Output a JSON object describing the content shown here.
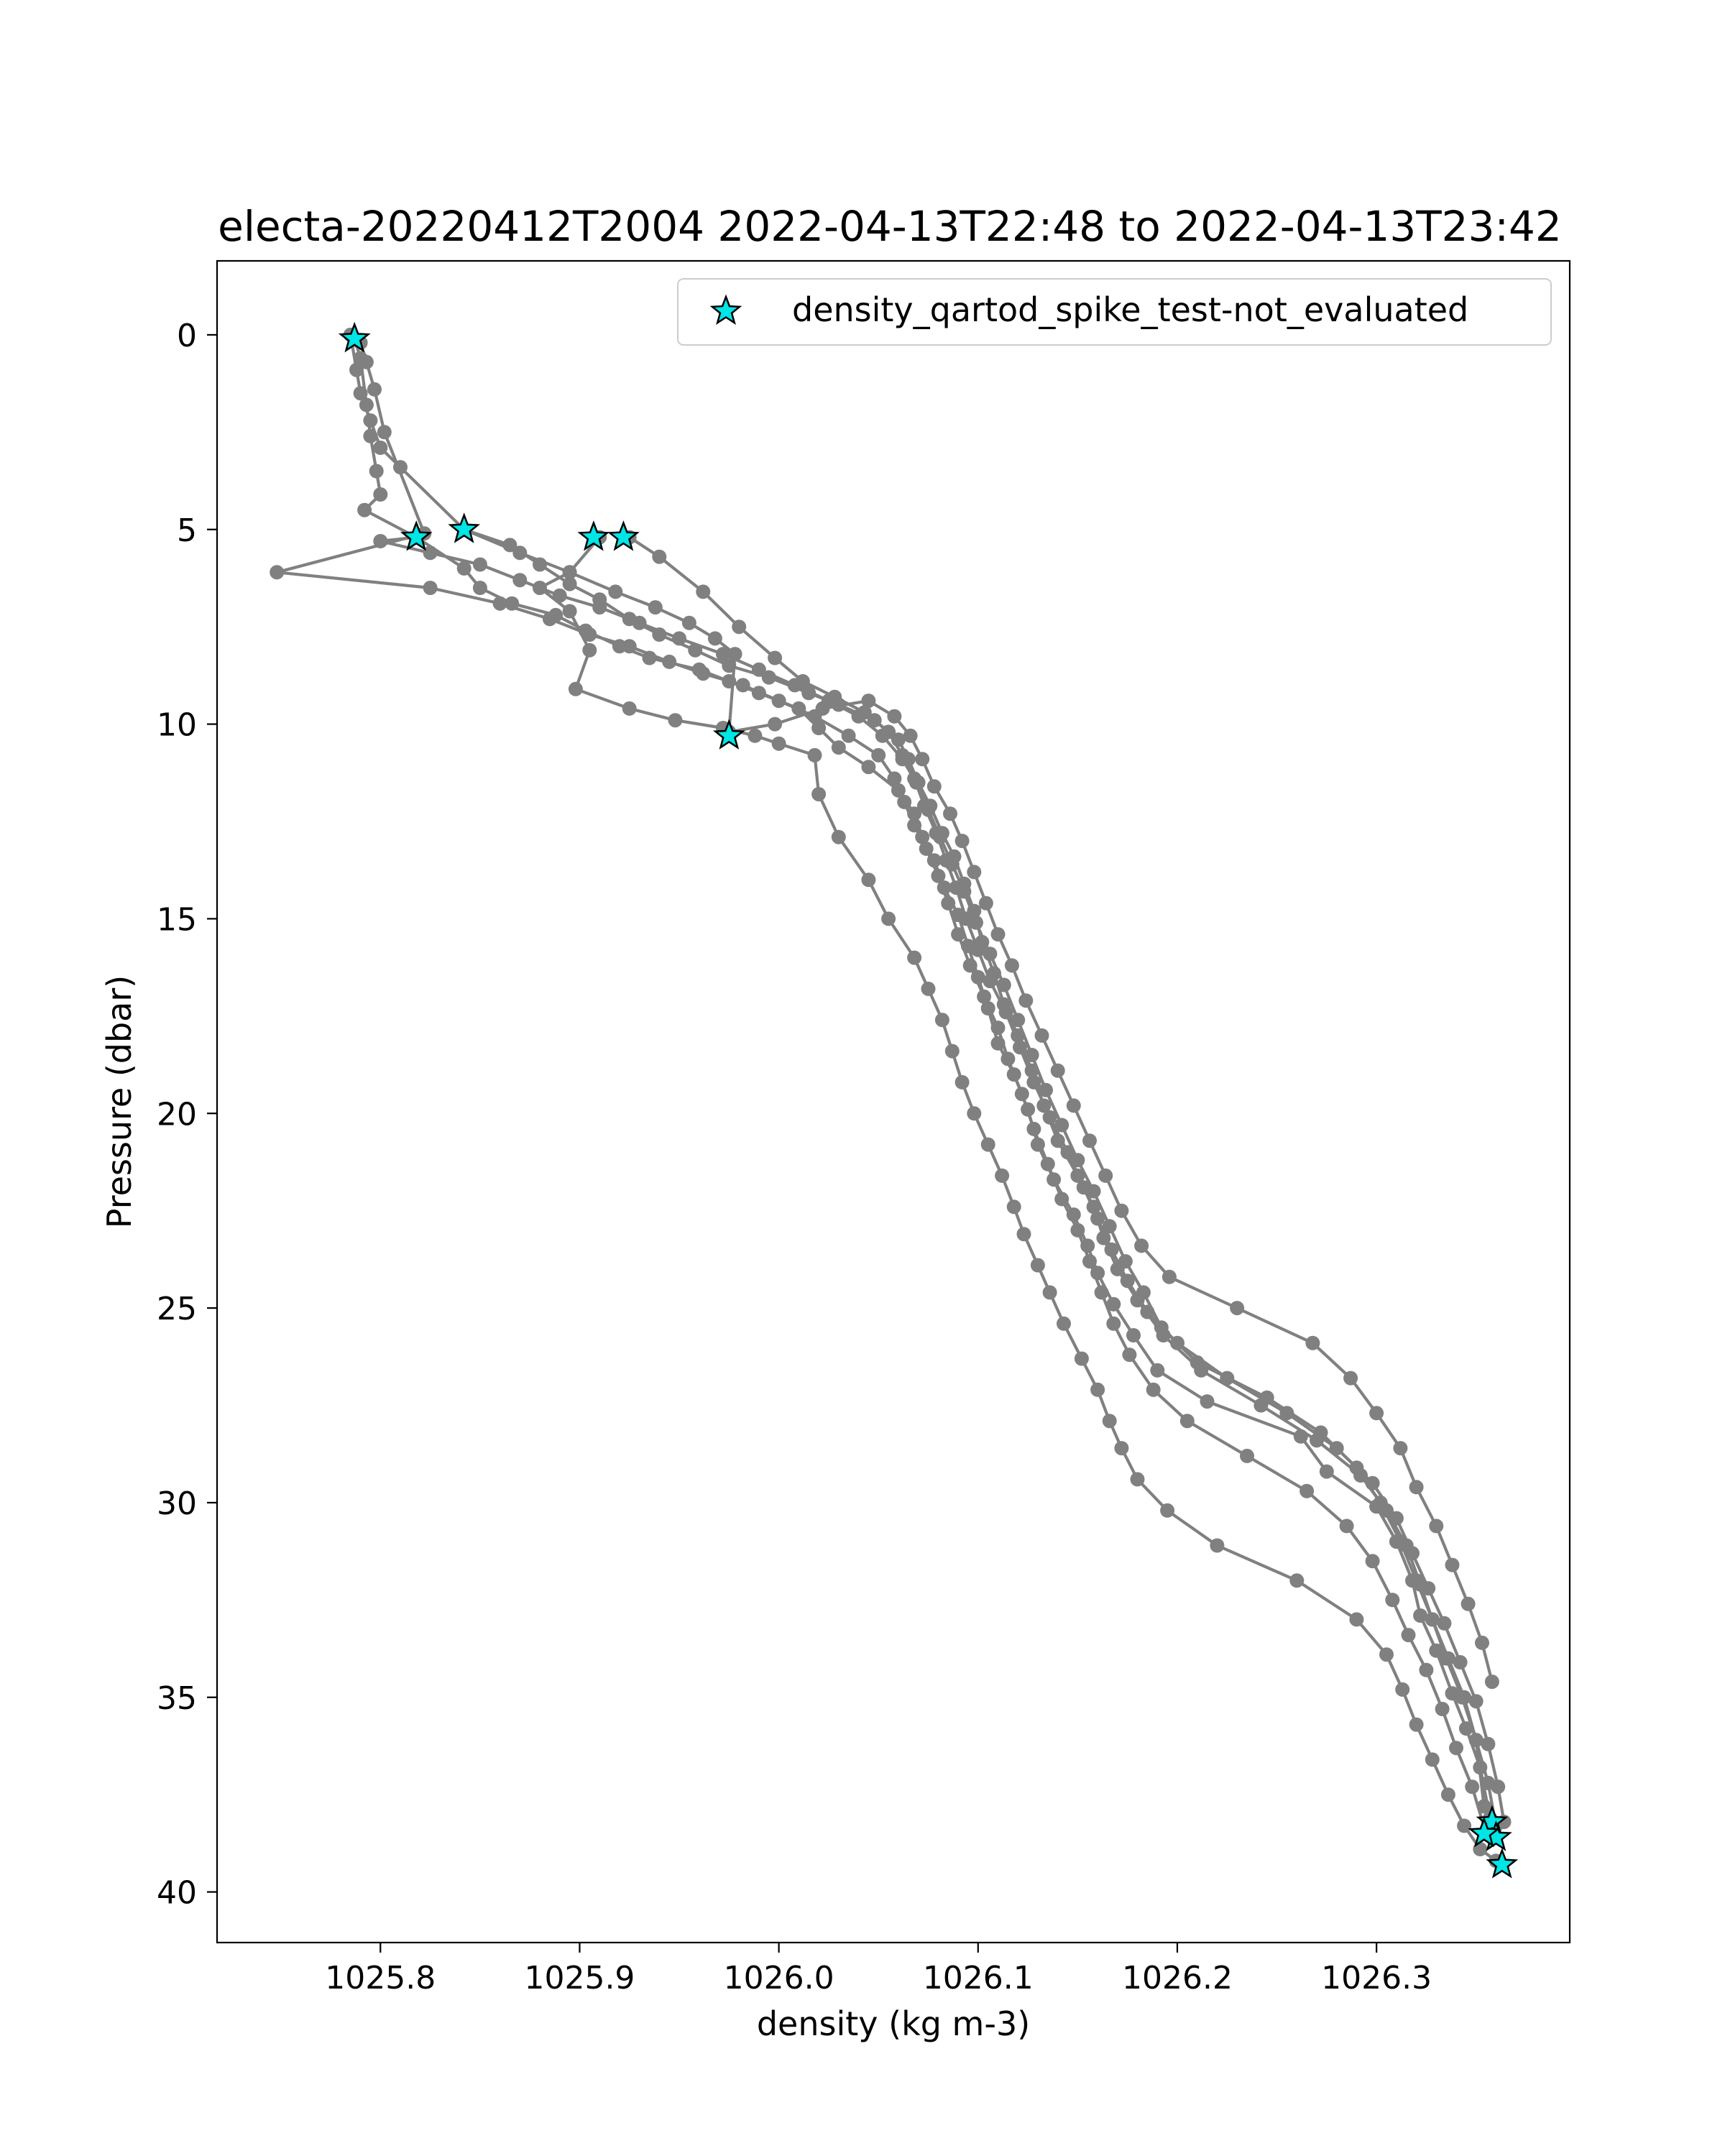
{
  "chart_data": {
    "type": "scatter",
    "title": "electa-20220412T2004 2022-04-13T22:48 to 2022-04-13T23:42",
    "xlabel": "density (kg m-3)",
    "ylabel": "Pressure (dbar)",
    "xlim": [
      1025.718,
      1026.397
    ],
    "ylim": [
      41.3,
      -1.9
    ],
    "y_inverted": true,
    "grid": false,
    "legend_position": "top-right",
    "xticks": [
      {
        "value": 1025.8,
        "label": "1025.8"
      },
      {
        "value": 1025.9,
        "label": "1025.9"
      },
      {
        "value": 1026.0,
        "label": "1026.0"
      },
      {
        "value": 1026.1,
        "label": "1026.1"
      },
      {
        "value": 1026.2,
        "label": "1026.2"
      },
      {
        "value": 1026.3,
        "label": "1026.3"
      }
    ],
    "yticks": [
      {
        "value": 0,
        "label": "0"
      },
      {
        "value": 5,
        "label": "5"
      },
      {
        "value": 10,
        "label": "10"
      },
      {
        "value": 15,
        "label": "15"
      },
      {
        "value": 20,
        "label": "20"
      },
      {
        "value": 25,
        "label": "25"
      },
      {
        "value": 30,
        "label": "30"
      },
      {
        "value": 35,
        "label": "35"
      },
      {
        "value": 40,
        "label": "40"
      }
    ],
    "profile_color": "#808080",
    "marker_color": "#00e5e5",
    "profiles": [
      {
        "x": [
          1025.787,
          1025.79,
          1025.793,
          1025.795,
          1025.798,
          1025.8,
          1025.792,
          1025.818,
          1025.842,
          1025.85,
          1025.866,
          1025.888,
          1025.903,
          1025.92,
          1025.935,
          1025.96,
          1025.975,
          1025.99,
          1026.01,
          1026.02,
          1026.03,
          1026.045,
          1026.06,
          1026.068,
          1026.072,
          1026.078,
          1026.083,
          1026.09,
          1026.095,
          1026.1,
          1026.105,
          1026.11,
          1026.118,
          1026.125,
          1026.13,
          1026.138,
          1026.148,
          1026.155,
          1026.16,
          1026.168,
          1026.178,
          1026.19,
          1026.215,
          1026.262,
          1026.275,
          1026.3,
          1026.31,
          1026.318,
          1026.322,
          1026.33,
          1026.338,
          1026.345,
          1026.352,
          1026.357
        ],
        "y": [
          0.1,
          0.6,
          1.8,
          2.6,
          3.5,
          4.1,
          4.5,
          5.2,
          6.0,
          6.5,
          6.9,
          7.2,
          7.6,
          8.0,
          8.3,
          8.6,
          8.9,
          9.2,
          9.6,
          10.1,
          10.6,
          11.1,
          11.7,
          12.3,
          12.9,
          13.5,
          14.2,
          14.9,
          15.7,
          16.5,
          17.3,
          18.2,
          19.0,
          19.9,
          20.8,
          21.7,
          22.6,
          23.4,
          24.1,
          24.9,
          25.7,
          26.6,
          27.4,
          28.3,
          29.2,
          30.1,
          31.0,
          32.0,
          32.9,
          33.8,
          34.9,
          35.8,
          36.8,
          38.1
        ]
      },
      {
        "x": [
          1025.785,
          1025.788,
          1025.79,
          1025.795,
          1025.8,
          1025.81,
          1025.842,
          1025.865,
          1025.88,
          1025.895,
          1025.91,
          1025.925,
          1025.94,
          1025.958,
          1025.975,
          1025.995,
          1026.015,
          1026.03,
          1026.048,
          1026.06,
          1026.065,
          1026.07,
          1026.076,
          1026.082,
          1026.088,
          1026.093,
          1026.098,
          1026.102,
          1026.108,
          1026.113,
          1026.12,
          1026.127,
          1026.133,
          1026.14,
          1026.15,
          1026.158,
          1026.163,
          1026.17,
          1026.18,
          1026.193,
          1026.212,
          1026.242,
          1026.27,
          1026.292,
          1026.305,
          1026.315,
          1026.322,
          1026.328,
          1026.335,
          1026.343,
          1026.35,
          1026.356,
          1026.36
        ],
        "y": [
          0.0,
          0.9,
          1.5,
          2.2,
          2.9,
          3.4,
          5.0,
          5.4,
          5.9,
          6.4,
          6.8,
          7.3,
          7.7,
          8.1,
          8.5,
          8.8,
          9.2,
          9.5,
          9.9,
          10.4,
          10.9,
          11.5,
          12.1,
          12.8,
          13.4,
          14.1,
          14.8,
          15.6,
          16.4,
          17.2,
          18.0,
          18.9,
          19.8,
          20.7,
          21.6,
          22.4,
          23.2,
          24.0,
          24.8,
          25.7,
          26.6,
          27.5,
          28.4,
          29.3,
          30.2,
          31.1,
          32.1,
          33.0,
          34.0,
          35.0,
          36.1,
          37.2,
          38.3
        ]
      },
      {
        "x": [
          1025.79,
          1025.793,
          1025.797,
          1025.802,
          1025.822,
          1025.748,
          1025.825,
          1025.86,
          1025.885,
          1025.905,
          1025.925,
          1025.945,
          1025.962,
          1025.982,
          1026.0,
          1026.018,
          1026.035,
          1026.05,
          1026.058,
          1026.063,
          1026.068,
          1026.074,
          1026.08,
          1026.085,
          1026.09,
          1026.096,
          1026.103,
          1026.11,
          1026.115,
          1026.122,
          1026.128,
          1026.135,
          1026.142,
          1026.15,
          1026.156,
          1026.162,
          1026.168,
          1026.176,
          1026.188,
          1026.205,
          1026.235,
          1026.265,
          1026.285,
          1026.298,
          1026.308,
          1026.316,
          1026.325,
          1026.333,
          1026.34,
          1026.348,
          1026.355,
          1026.358
        ],
        "y": [
          0.2,
          0.7,
          1.4,
          2.5,
          5.1,
          6.1,
          6.5,
          6.9,
          7.3,
          7.7,
          8.0,
          8.4,
          8.7,
          9.0,
          9.4,
          9.8,
          10.3,
          10.8,
          11.4,
          12.0,
          12.6,
          13.2,
          13.9,
          14.6,
          15.4,
          16.2,
          17.0,
          17.8,
          18.6,
          19.5,
          20.4,
          21.3,
          22.2,
          23.0,
          23.8,
          24.6,
          25.4,
          26.2,
          27.1,
          27.9,
          28.8,
          29.7,
          30.6,
          31.5,
          32.5,
          33.4,
          34.3,
          35.3,
          36.3,
          37.3,
          38.5,
          38.6
        ]
      },
      {
        "x": [
          1025.91,
          1025.895,
          1025.88,
          1025.895,
          1025.905,
          1025.898,
          1025.925,
          1025.948,
          1025.972,
          1025.988,
          1026.0,
          1026.018,
          1026.02,
          1026.03,
          1026.045,
          1026.055,
          1026.068,
          1026.075,
          1026.082,
          1026.087,
          1026.092,
          1026.098,
          1026.105,
          1026.112,
          1026.118,
          1026.123,
          1026.13,
          1026.136,
          1026.143,
          1026.152,
          1026.16,
          1026.166,
          1026.172,
          1026.18,
          1026.195,
          1026.22,
          1026.26,
          1026.29,
          1026.305,
          1026.313,
          1026.32,
          1026.328,
          1026.336,
          1026.344,
          1026.352,
          1026.36,
          1026.363
        ],
        "y": [
          5.2,
          6.1,
          6.5,
          7.1,
          8.1,
          9.1,
          9.6,
          9.9,
          10.1,
          10.3,
          10.5,
          10.8,
          11.8,
          12.9,
          14.0,
          15.0,
          16.0,
          16.8,
          17.6,
          18.4,
          19.2,
          20.0,
          20.8,
          21.6,
          22.4,
          23.1,
          23.9,
          24.6,
          25.4,
          26.3,
          27.1,
          27.9,
          28.6,
          29.4,
          30.2,
          31.1,
          32.0,
          33.0,
          33.9,
          34.8,
          35.7,
          36.6,
          37.5,
          38.3,
          38.9,
          39.2,
          39.3
        ]
      },
      {
        "x": [
          1025.925,
          1025.94,
          1025.962,
          1025.98,
          1025.998,
          1026.012,
          1026.028,
          1026.043,
          1026.055,
          1026.062,
          1026.068,
          1026.073,
          1026.079,
          1026.084,
          1026.089,
          1026.094,
          1026.1,
          1026.106,
          1026.114,
          1026.121,
          1026.128,
          1026.136,
          1026.145,
          1026.153,
          1026.16,
          1026.167,
          1026.175,
          1026.185,
          1026.2,
          1026.225,
          1026.255,
          1026.28,
          1026.298,
          1026.31,
          1026.318,
          1026.326,
          1026.334,
          1026.342,
          1026.35,
          1026.356,
          1026.361,
          1026.364
        ],
        "y": [
          5.2,
          5.7,
          6.6,
          7.5,
          8.3,
          8.9,
          9.3,
          9.7,
          10.2,
          10.8,
          11.4,
          12.1,
          12.8,
          13.5,
          14.2,
          15.0,
          15.8,
          16.6,
          17.4,
          18.3,
          19.2,
          20.1,
          21.0,
          21.9,
          22.7,
          23.5,
          24.3,
          25.1,
          25.9,
          26.8,
          27.7,
          28.6,
          29.5,
          30.4,
          31.3,
          32.2,
          33.1,
          34.1,
          35.1,
          36.2,
          37.3,
          38.2
        ]
      },
      {
        "x": [
          1025.842,
          1025.87,
          1025.895,
          1025.918,
          1025.938,
          1025.955,
          1025.968,
          1025.978,
          1025.975,
          1025.998,
          1026.022,
          1026.045,
          1026.058,
          1026.066,
          1026.072,
          1026.078,
          1026.086,
          1026.092,
          1026.098,
          1026.104,
          1026.11,
          1026.117,
          1026.124,
          1026.132,
          1026.14,
          1026.148,
          1026.156,
          1026.164,
          1026.172,
          1026.182,
          1026.196,
          1026.23,
          1026.268,
          1026.287,
          1026.3,
          1026.312,
          1026.32,
          1026.33,
          1026.338,
          1026.346,
          1026.353,
          1026.358
        ],
        "y": [
          5.0,
          5.6,
          6.1,
          6.6,
          7.0,
          7.4,
          7.8,
          8.2,
          10.2,
          10.0,
          9.6,
          9.4,
          9.8,
          10.3,
          10.9,
          11.6,
          12.3,
          13.0,
          13.8,
          14.6,
          15.4,
          16.2,
          17.1,
          18.0,
          18.9,
          19.8,
          20.7,
          21.6,
          22.5,
          23.4,
          24.2,
          25.0,
          25.9,
          26.8,
          27.7,
          28.6,
          29.6,
          30.6,
          31.6,
          32.6,
          33.6,
          34.6
        ]
      },
      {
        "x": [
          1025.818,
          1025.8,
          1025.825,
          1025.85,
          1025.87,
          1025.89,
          1025.91,
          1025.93,
          1025.95,
          1025.972,
          1025.99,
          1026.008,
          1026.025,
          1026.04,
          1026.052,
          1026.062,
          1026.069,
          1026.075,
          1026.081,
          1026.087,
          1026.093,
          1026.099,
          1026.106,
          1026.113,
          1026.12,
          1026.127,
          1026.134,
          1026.142,
          1026.15,
          1026.158,
          1026.166,
          1026.174,
          1026.183,
          1026.192,
          1026.21,
          1026.245,
          1026.272,
          1026.29,
          1026.302,
          1026.312,
          1026.32,
          1026.328,
          1026.336,
          1026.344,
          1026.35,
          1026.354
        ],
        "y": [
          5.2,
          5.3,
          5.6,
          5.9,
          6.3,
          6.7,
          7.0,
          7.4,
          7.8,
          8.2,
          8.6,
          9.0,
          9.4,
          9.8,
          10.3,
          10.9,
          11.5,
          12.2,
          12.9,
          13.6,
          14.3,
          15.1,
          15.9,
          16.7,
          17.6,
          18.5,
          19.4,
          20.3,
          21.2,
          22.0,
          22.9,
          23.8,
          24.6,
          25.5,
          26.4,
          27.3,
          28.2,
          29.1,
          30.0,
          31.0,
          32.0,
          33.0,
          34.0,
          35.0,
          36.1,
          37.8
        ]
      }
    ],
    "marker_points": {
      "x": [
        1025.787,
        1025.818,
        1025.842,
        1025.907,
        1025.922,
        1025.975,
        1026.358,
        1026.36,
        1026.354,
        1026.363
      ],
      "y": [
        0.1,
        5.2,
        5.0,
        5.2,
        5.2,
        10.3,
        38.2,
        38.6,
        38.5,
        39.3
      ]
    },
    "legend": [
      {
        "label": "density_qartod_spike_test-not_evaluated",
        "marker": "star",
        "color": "#00e5e5"
      }
    ]
  }
}
